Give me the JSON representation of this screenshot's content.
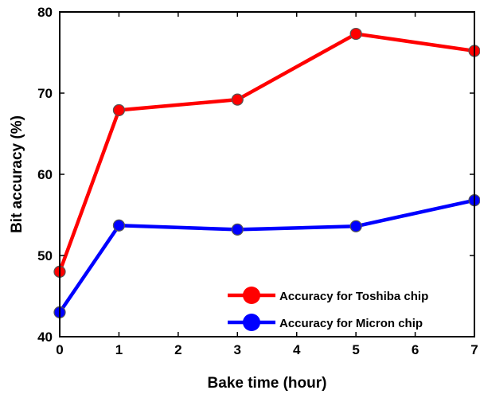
{
  "chart_data": {
    "type": "line",
    "title": "",
    "xlabel": "Bake time (hour)",
    "ylabel": "Bit accuracy (%)",
    "xlim": [
      0,
      7
    ],
    "ylim": [
      40,
      80
    ],
    "xticks": [
      0,
      1,
      2,
      3,
      4,
      5,
      6,
      7
    ],
    "yticks": [
      40,
      50,
      60,
      70,
      80
    ],
    "x": [
      0,
      1,
      3,
      5,
      7
    ],
    "grid": false,
    "legend_position": "bottom-right",
    "series": [
      {
        "name": "Accuracy for Toshiba chip",
        "color": "#ff0000",
        "values": [
          48.0,
          67.9,
          69.2,
          77.3,
          75.2
        ]
      },
      {
        "name": "Accuracy for Micron chip",
        "color": "#0000ff",
        "values": [
          43.0,
          53.7,
          53.2,
          53.6,
          56.8
        ]
      }
    ]
  }
}
